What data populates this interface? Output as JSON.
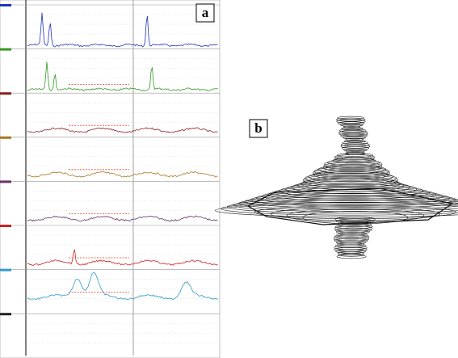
{
  "panel_a": {
    "label": "a"
  },
  "panel_b": {
    "label": "b"
  }
}
